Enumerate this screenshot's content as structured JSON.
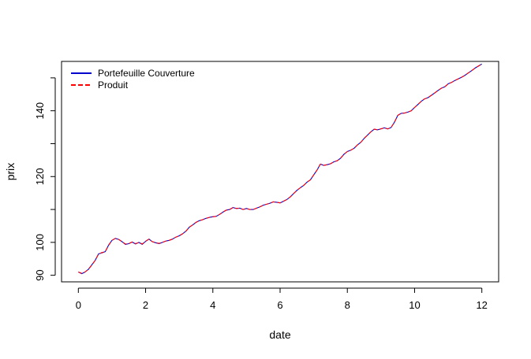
{
  "chart_data": {
    "type": "line",
    "title": "",
    "xlabel": "date",
    "ylabel": "prix",
    "xlim": [
      -0.5,
      12.5
    ],
    "ylim": [
      88,
      155
    ],
    "x_ticks": [
      0,
      2,
      4,
      6,
      8,
      10,
      12
    ],
    "x_tick_labels": [
      "0",
      "2",
      "4",
      "6",
      "8",
      "10",
      "12"
    ],
    "y_ticks": [
      90,
      100,
      110,
      120,
      130,
      140,
      150
    ],
    "y_tick_labels": [
      "90",
      "100",
      "",
      "120",
      "",
      "140",
      ""
    ],
    "grid": false,
    "legend_position": "top-left",
    "series": [
      {
        "name": "Portefeuille Couverture",
        "color": "#0000cc",
        "style": "solid",
        "x": [
          0,
          0.1,
          0.2,
          0.3,
          0.4,
          0.5,
          0.6,
          0.7,
          0.8,
          0.9,
          1.0,
          1.1,
          1.2,
          1.3,
          1.4,
          1.5,
          1.6,
          1.7,
          1.8,
          1.9,
          2.0,
          2.1,
          2.2,
          2.3,
          2.4,
          2.5,
          2.6,
          2.7,
          2.8,
          2.9,
          3.0,
          3.1,
          3.2,
          3.3,
          3.4,
          3.5,
          3.6,
          3.7,
          3.8,
          3.9,
          4.0,
          4.1,
          4.2,
          4.3,
          4.4,
          4.5,
          4.6,
          4.7,
          4.8,
          4.9,
          5.0,
          5.1,
          5.2,
          5.3,
          5.4,
          5.5,
          5.6,
          5.7,
          5.8,
          5.9,
          6.0,
          6.1,
          6.2,
          6.3,
          6.4,
          6.5,
          6.6,
          6.7,
          6.8,
          6.9,
          7.0,
          7.1,
          7.2,
          7.3,
          7.4,
          7.5,
          7.6,
          7.7,
          7.8,
          7.9,
          8.0,
          8.1,
          8.2,
          8.3,
          8.4,
          8.5,
          8.6,
          8.7,
          8.8,
          8.9,
          9.0,
          9.1,
          9.2,
          9.3,
          9.4,
          9.5,
          9.6,
          9.7,
          9.8,
          9.9,
          10.0,
          10.1,
          10.2,
          10.3,
          10.4,
          10.5,
          10.6,
          10.7,
          10.8,
          10.9,
          11.0,
          11.1,
          11.2,
          11.3,
          11.4,
          11.5,
          11.6,
          11.7,
          11.8,
          11.9,
          12.0
        ],
        "y": [
          91.0,
          90.5,
          91.0,
          91.8,
          93.2,
          94.5,
          96.5,
          96.8,
          97.2,
          99.2,
          100.6,
          101.2,
          100.9,
          100.2,
          99.4,
          99.6,
          100.1,
          99.5,
          100.0,
          99.4,
          100.3,
          101.0,
          100.2,
          99.9,
          99.6,
          100.0,
          100.4,
          100.6,
          101.0,
          101.6,
          102.0,
          102.6,
          103.4,
          104.6,
          105.3,
          106.1,
          106.6,
          106.9,
          107.3,
          107.6,
          107.8,
          107.9,
          108.5,
          109.2,
          109.8,
          110.0,
          110.6,
          110.3,
          110.4,
          110.0,
          110.3,
          110.0,
          110.0,
          110.4,
          110.8,
          111.3,
          111.6,
          111.9,
          112.3,
          112.2,
          112.0,
          112.5,
          113.0,
          113.8,
          114.8,
          115.8,
          116.6,
          117.3,
          118.3,
          119.0,
          120.5,
          122.0,
          123.8,
          123.4,
          123.6,
          123.9,
          124.5,
          124.8,
          125.6,
          126.8,
          127.6,
          128.0,
          128.6,
          129.6,
          130.4,
          131.6,
          132.6,
          133.6,
          134.4,
          134.2,
          134.5,
          134.8,
          134.5,
          134.9,
          136.5,
          138.6,
          139.2,
          139.3,
          139.6,
          140.0,
          141.0,
          141.9,
          142.9,
          143.6,
          144.0,
          144.7,
          145.4,
          146.2,
          146.9,
          147.3,
          148.2,
          148.6,
          149.2,
          149.7,
          150.2,
          150.8,
          151.5,
          152.2,
          153.0,
          153.6,
          154.2
        ]
      },
      {
        "name": "Produit",
        "color": "#ff0000",
        "style": "dashed",
        "x": [
          0,
          0.1,
          0.2,
          0.3,
          0.4,
          0.5,
          0.6,
          0.7,
          0.8,
          0.9,
          1.0,
          1.1,
          1.2,
          1.3,
          1.4,
          1.5,
          1.6,
          1.7,
          1.8,
          1.9,
          2.0,
          2.1,
          2.2,
          2.3,
          2.4,
          2.5,
          2.6,
          2.7,
          2.8,
          2.9,
          3.0,
          3.1,
          3.2,
          3.3,
          3.4,
          3.5,
          3.6,
          3.7,
          3.8,
          3.9,
          4.0,
          4.1,
          4.2,
          4.3,
          4.4,
          4.5,
          4.6,
          4.7,
          4.8,
          4.9,
          5.0,
          5.1,
          5.2,
          5.3,
          5.4,
          5.5,
          5.6,
          5.7,
          5.8,
          5.9,
          6.0,
          6.1,
          6.2,
          6.3,
          6.4,
          6.5,
          6.6,
          6.7,
          6.8,
          6.9,
          7.0,
          7.1,
          7.2,
          7.3,
          7.4,
          7.5,
          7.6,
          7.7,
          7.8,
          7.9,
          8.0,
          8.1,
          8.2,
          8.3,
          8.4,
          8.5,
          8.6,
          8.7,
          8.8,
          8.9,
          9.0,
          9.1,
          9.2,
          9.3,
          9.4,
          9.5,
          9.6,
          9.7,
          9.8,
          9.9,
          10.0,
          10.1,
          10.2,
          10.3,
          10.4,
          10.5,
          10.6,
          10.7,
          10.8,
          10.9,
          11.0,
          11.1,
          11.2,
          11.3,
          11.4,
          11.5,
          11.6,
          11.7,
          11.8,
          11.9,
          12.0
        ],
        "y": [
          91.0,
          90.6,
          91.0,
          91.8,
          93.1,
          94.5,
          96.4,
          96.9,
          97.2,
          99.1,
          100.6,
          101.2,
          100.9,
          100.2,
          99.5,
          99.6,
          100.1,
          99.6,
          100.0,
          99.5,
          100.3,
          101.0,
          100.2,
          99.9,
          99.7,
          100.0,
          100.4,
          100.6,
          101.0,
          101.6,
          102.0,
          102.6,
          103.4,
          104.6,
          105.3,
          106.1,
          106.6,
          106.9,
          107.3,
          107.6,
          107.8,
          107.9,
          108.5,
          109.2,
          109.8,
          110.0,
          110.6,
          110.3,
          110.4,
          110.0,
          110.3,
          110.0,
          110.0,
          110.4,
          110.8,
          111.3,
          111.6,
          111.9,
          112.3,
          112.2,
          112.0,
          112.5,
          113.0,
          113.8,
          114.8,
          115.8,
          116.6,
          117.3,
          118.3,
          119.0,
          120.5,
          122.0,
          123.8,
          123.4,
          123.6,
          123.9,
          124.5,
          124.8,
          125.6,
          126.8,
          127.6,
          128.0,
          128.6,
          129.6,
          130.4,
          131.6,
          132.6,
          133.6,
          134.4,
          134.2,
          134.5,
          134.8,
          134.5,
          134.9,
          136.5,
          138.6,
          139.2,
          139.3,
          139.6,
          140.0,
          141.0,
          141.9,
          142.9,
          143.6,
          144.0,
          144.7,
          145.4,
          146.2,
          146.9,
          147.3,
          148.2,
          148.6,
          149.2,
          149.7,
          150.2,
          150.8,
          151.5,
          152.2,
          153.0,
          153.6,
          154.2
        ]
      }
    ]
  }
}
